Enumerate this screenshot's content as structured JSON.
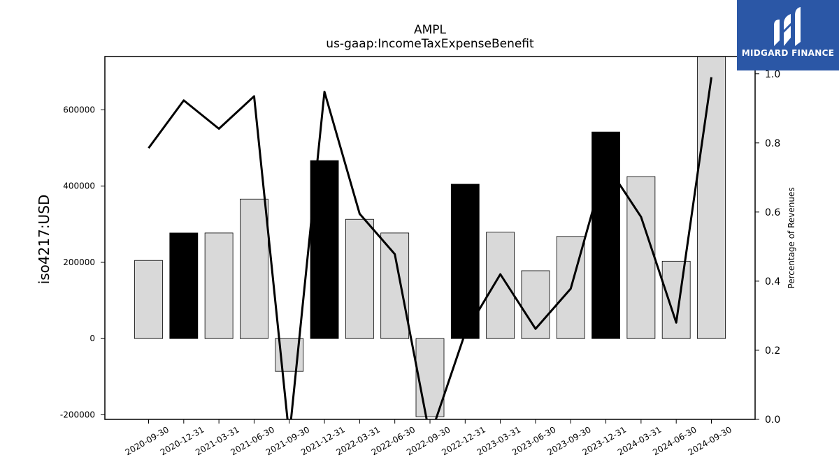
{
  "brand": {
    "name": "MIDGARD FINANCE",
    "color": "#2b57a6"
  },
  "chart_data": {
    "type": "bar",
    "title": "AMPL",
    "subtitle": "us-gaap:IncomeTaxExpenseBenefit",
    "ylabel": "iso4217:USD",
    "y2label": "Percentage of Revenues",
    "categories": [
      "2020-09-30",
      "2020-12-31",
      "2021-03-31",
      "2021-06-30",
      "2021-09-30",
      "2021-12-31",
      "2022-03-31",
      "2022-06-30",
      "2022-09-30",
      "2022-12-31",
      "2023-03-31",
      "2023-06-30",
      "2023-09-30",
      "2023-12-31",
      "2024-03-31",
      "2024-06-30",
      "2024-09-30"
    ],
    "series": [
      {
        "kind": "bar",
        "values": [
          205000,
          277000,
          277000,
          366000,
          -86000,
          467000,
          313000,
          277000,
          -205000,
          405000,
          279000,
          178000,
          268000,
          542000,
          425000,
          203000,
          740000
        ],
        "colors": [
          "#d9d9d9",
          "#000000",
          "#d9d9d9",
          "#d9d9d9",
          "#d9d9d9",
          "#000000",
          "#d9d9d9",
          "#d9d9d9",
          "#d9d9d9",
          "#000000",
          "#d9d9d9",
          "#d9d9d9",
          "#d9d9d9",
          "#000000",
          "#d9d9d9",
          "#d9d9d9",
          "#d9d9d9"
        ]
      },
      {
        "kind": "line",
        "axis": "right",
        "color": "#000000",
        "values": [
          0.785,
          0.923,
          0.841,
          0.935,
          -0.05,
          0.948,
          0.595,
          0.478,
          -0.05,
          0.25,
          0.42,
          0.262,
          0.378,
          0.74,
          0.586,
          0.28,
          0.99
        ]
      }
    ],
    "ylim": [
      -212000,
      740000
    ],
    "y2lim": [
      0.0,
      1.05
    ],
    "yticks": [
      -200000,
      0,
      200000,
      400000,
      600000
    ],
    "y2ticks": [
      0.0,
      0.2,
      0.4,
      0.6,
      0.8,
      1.0
    ],
    "grid": false
  }
}
